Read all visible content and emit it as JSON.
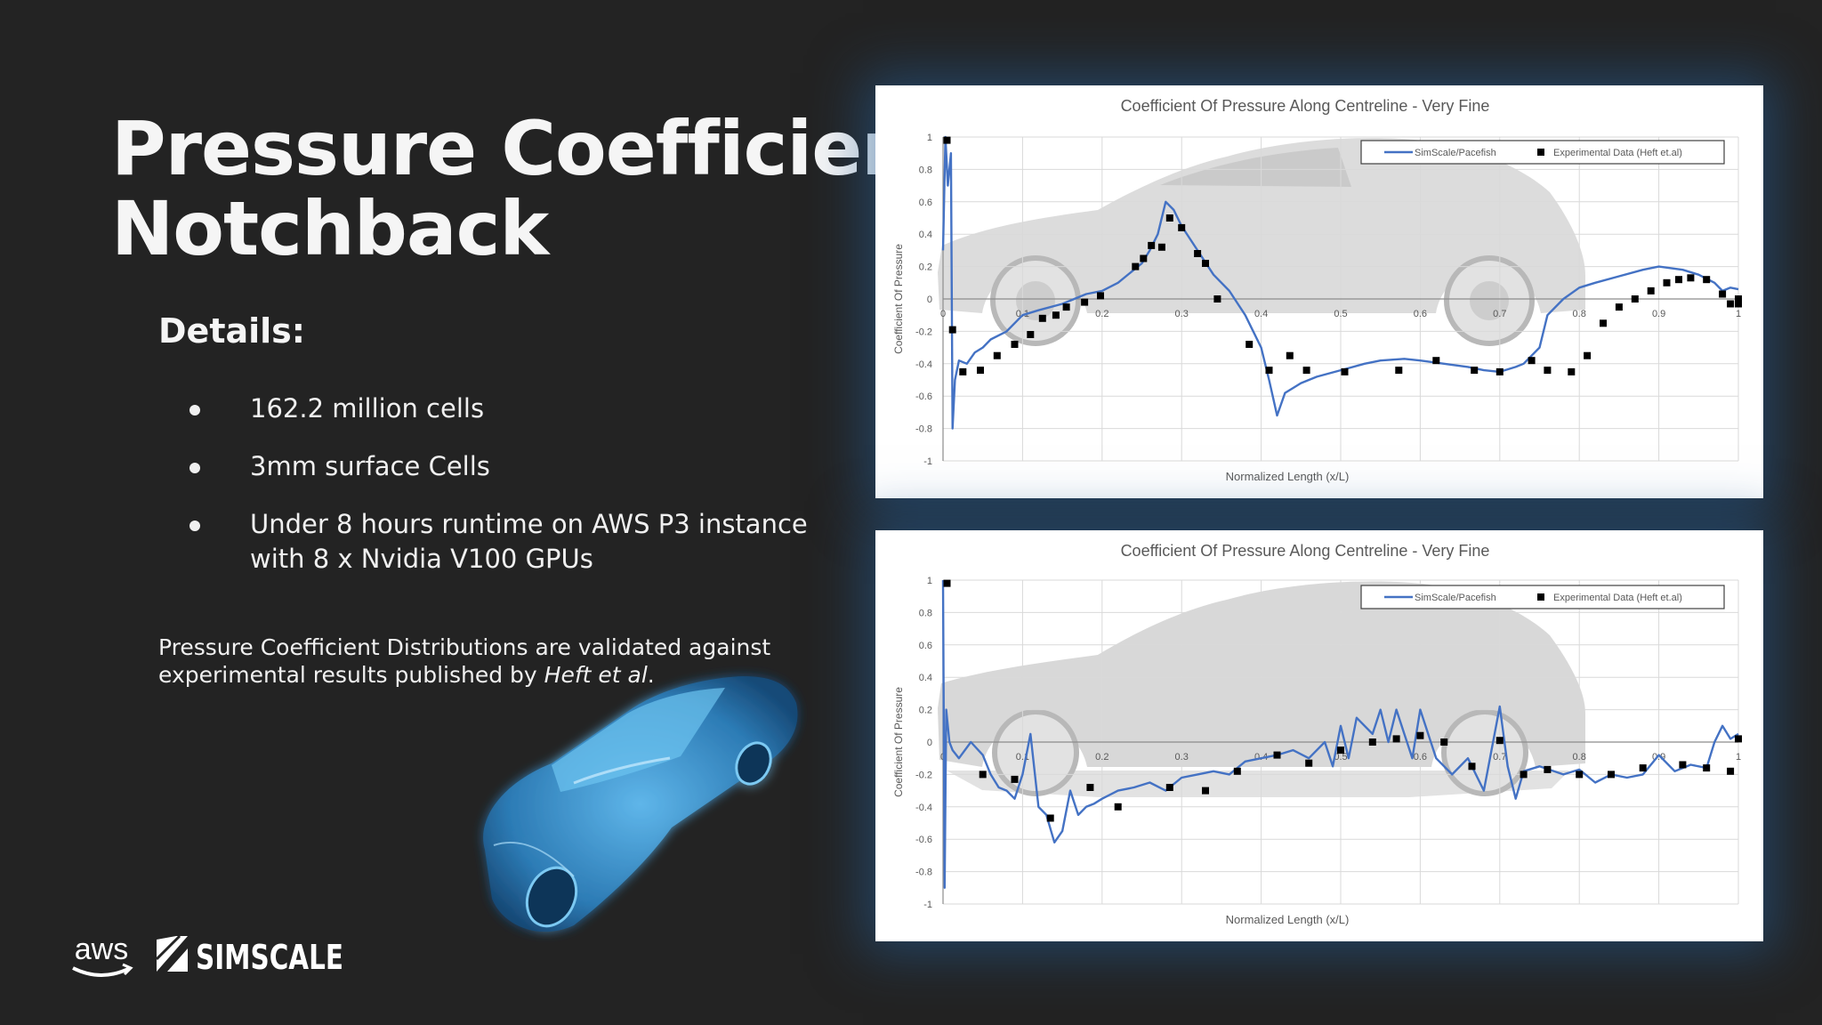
{
  "slide": {
    "title_line1": "Pressure Coefficient",
    "title_line2": "Notchback",
    "details_heading": "Details:",
    "bullets": [
      "162.2 million cells",
      "3mm surface Cells",
      "Under 8 hours runtime on AWS P3 instance with 8 x Nvidia V100 GPUs"
    ],
    "note_text": "Pressure Coefficient Distributions are validated against experimental results published by ",
    "note_citation": "Heft et al",
    "note_end": ".",
    "logo_aws_text": "aws",
    "logo_simscale_text": "SIMSCALE"
  },
  "colors": {
    "background": "#232323",
    "series_line": "#4472c4",
    "markers": "#000000",
    "panel_glow": "#245c96"
  },
  "icons": [
    "car-3d-render",
    "aws-logo",
    "simscale-logo",
    "car-silhouette-upper",
    "car-silhouette-lower"
  ],
  "chart_data": [
    {
      "type": "line",
      "title": "Coefficient Of Pressure Along Centreline - Very Fine",
      "xlabel": "Normalized Length  (x/L)",
      "ylabel": "Coefficient Of Pressure",
      "xlim": [
        0,
        1
      ],
      "ylim": [
        -1,
        1
      ],
      "x_ticks": [
        "0",
        "0.1",
        "0.2",
        "0.3",
        "0.4",
        "0.5",
        "0.6",
        "0.7",
        "0.8",
        "0.9",
        "1"
      ],
      "y_ticks": [
        "1",
        "0.8",
        "0.6",
        "0.4",
        "0.2",
        "0",
        "-0.2",
        "-0.4",
        "-0.6",
        "-0.8",
        "-1"
      ],
      "grid": true,
      "legend_position": "top-right",
      "series": [
        {
          "name": "SimScale/Pacefish",
          "kind": "line",
          "x": [
            0,
            0.003,
            0.006,
            0.01,
            0.012,
            0.015,
            0.02,
            0.03,
            0.04,
            0.05,
            0.06,
            0.08,
            0.1,
            0.12,
            0.15,
            0.18,
            0.2,
            0.22,
            0.24,
            0.25,
            0.26,
            0.27,
            0.28,
            0.29,
            0.3,
            0.32,
            0.34,
            0.36,
            0.38,
            0.4,
            0.41,
            0.42,
            0.43,
            0.44,
            0.45,
            0.47,
            0.5,
            0.53,
            0.55,
            0.58,
            0.6,
            0.63,
            0.66,
            0.68,
            0.7,
            0.72,
            0.73,
            0.75,
            0.76,
            0.78,
            0.8,
            0.82,
            0.85,
            0.88,
            0.9,
            0.93,
            0.95,
            0.97,
            0.98,
            0.99,
            1.0
          ],
          "y": [
            0.3,
            1.0,
            0.7,
            0.9,
            -0.8,
            -0.5,
            -0.38,
            -0.4,
            -0.33,
            -0.3,
            -0.25,
            -0.2,
            -0.1,
            -0.07,
            -0.03,
            0.03,
            0.05,
            0.1,
            0.18,
            0.22,
            0.3,
            0.4,
            0.6,
            0.55,
            0.45,
            0.3,
            0.15,
            0.05,
            -0.1,
            -0.3,
            -0.5,
            -0.72,
            -0.58,
            -0.55,
            -0.52,
            -0.48,
            -0.44,
            -0.4,
            -0.38,
            -0.37,
            -0.38,
            -0.4,
            -0.42,
            -0.44,
            -0.45,
            -0.42,
            -0.4,
            -0.3,
            -0.1,
            0.0,
            0.07,
            0.1,
            0.14,
            0.18,
            0.2,
            0.18,
            0.15,
            0.1,
            0.05,
            0.07,
            0.06
          ]
        },
        {
          "name": "Experimental Data (Heft et.al)",
          "kind": "scatter",
          "x": [
            0.005,
            0.012,
            0.025,
            0.047,
            0.068,
            0.09,
            0.11,
            0.125,
            0.142,
            0.155,
            0.178,
            0.198,
            0.242,
            0.252,
            0.262,
            0.275,
            0.285,
            0.3,
            0.32,
            0.33,
            0.345,
            0.385,
            0.41,
            0.436,
            0.457,
            0.505,
            0.573,
            0.62,
            0.668,
            0.7,
            0.74,
            0.76,
            0.79,
            0.81,
            0.83,
            0.85,
            0.87,
            0.89,
            0.91,
            0.925,
            0.94,
            0.96,
            0.98,
            0.99,
            1.0,
            1.0
          ],
          "y": [
            0.98,
            -0.19,
            -0.45,
            -0.44,
            -0.35,
            -0.28,
            -0.22,
            -0.12,
            -0.1,
            -0.05,
            -0.02,
            0.02,
            0.2,
            0.25,
            0.33,
            0.32,
            0.5,
            0.44,
            0.28,
            0.22,
            0.0,
            -0.28,
            -0.44,
            -0.35,
            -0.44,
            -0.45,
            -0.44,
            -0.38,
            -0.44,
            -0.45,
            -0.38,
            -0.44,
            -0.45,
            -0.35,
            -0.15,
            -0.05,
            0.0,
            0.05,
            0.1,
            0.12,
            0.13,
            0.12,
            0.03,
            -0.03,
            -0.03,
            0.0
          ]
        }
      ]
    },
    {
      "type": "line",
      "title": "Coefficient Of Pressure Along Centreline - Very Fine",
      "xlabel": "Normalized Length (x/L)",
      "ylabel": "Coefficient Of Pressure",
      "xlim": [
        0,
        1
      ],
      "ylim": [
        -1,
        1
      ],
      "x_ticks": [
        "0",
        "0.1",
        "0.2",
        "0.3",
        "0.4",
        "0.5",
        "0.6",
        "0.7",
        "0.8",
        "0.9",
        "1"
      ],
      "y_ticks": [
        "1",
        "0.8",
        "0.6",
        "0.4",
        "0.2",
        "0",
        "-0.2",
        "-0.4",
        "-0.6",
        "-0.8",
        "-1"
      ],
      "grid": true,
      "legend_position": "top-right",
      "series": [
        {
          "name": "SimScale/Pacefish",
          "kind": "line",
          "x": [
            0,
            0.002,
            0.004,
            0.008,
            0.012,
            0.02,
            0.035,
            0.05,
            0.06,
            0.07,
            0.08,
            0.09,
            0.1,
            0.11,
            0.12,
            0.13,
            0.14,
            0.15,
            0.16,
            0.17,
            0.18,
            0.19,
            0.2,
            0.22,
            0.24,
            0.26,
            0.28,
            0.3,
            0.32,
            0.34,
            0.36,
            0.38,
            0.4,
            0.42,
            0.44,
            0.46,
            0.48,
            0.49,
            0.5,
            0.51,
            0.52,
            0.54,
            0.55,
            0.56,
            0.57,
            0.58,
            0.59,
            0.6,
            0.62,
            0.64,
            0.66,
            0.68,
            0.7,
            0.71,
            0.72,
            0.73,
            0.75,
            0.78,
            0.8,
            0.82,
            0.84,
            0.86,
            0.88,
            0.9,
            0.92,
            0.94,
            0.96,
            0.97,
            0.98,
            0.99,
            1.0
          ],
          "y": [
            1.0,
            -0.9,
            0.2,
            0.0,
            -0.05,
            -0.1,
            0.0,
            -0.08,
            -0.2,
            -0.28,
            -0.3,
            -0.35,
            -0.2,
            0.05,
            -0.4,
            -0.45,
            -0.62,
            -0.55,
            -0.3,
            -0.45,
            -0.4,
            -0.38,
            -0.35,
            -0.3,
            -0.28,
            -0.25,
            -0.3,
            -0.22,
            -0.2,
            -0.18,
            -0.2,
            -0.12,
            -0.1,
            -0.08,
            -0.05,
            -0.1,
            0.0,
            -0.15,
            0.1,
            -0.1,
            0.15,
            0.05,
            0.2,
            0.0,
            0.2,
            0.05,
            -0.1,
            0.2,
            -0.1,
            -0.2,
            -0.1,
            -0.3,
            0.22,
            -0.15,
            -0.35,
            -0.18,
            -0.15,
            -0.2,
            -0.17,
            -0.25,
            -0.2,
            -0.22,
            -0.2,
            -0.08,
            -0.18,
            -0.14,
            -0.16,
            0.0,
            0.1,
            0.02,
            0.05
          ]
        },
        {
          "name": "Experimental Data (Heft et.al)",
          "kind": "scatter",
          "x": [
            0.005,
            0.05,
            0.09,
            0.135,
            0.185,
            0.22,
            0.285,
            0.33,
            0.37,
            0.42,
            0.46,
            0.5,
            0.54,
            0.57,
            0.6,
            0.63,
            0.665,
            0.7,
            0.73,
            0.76,
            0.8,
            0.84,
            0.88,
            0.93,
            0.96,
            0.99,
            1.0
          ],
          "y": [
            0.98,
            -0.2,
            -0.23,
            -0.47,
            -0.28,
            -0.4,
            -0.28,
            -0.3,
            -0.18,
            -0.08,
            -0.13,
            -0.05,
            0.0,
            0.02,
            0.04,
            0.0,
            -0.15,
            0.01,
            -0.2,
            -0.17,
            -0.2,
            -0.2,
            -0.16,
            -0.14,
            -0.16,
            -0.18,
            0.02
          ]
        }
      ]
    }
  ]
}
